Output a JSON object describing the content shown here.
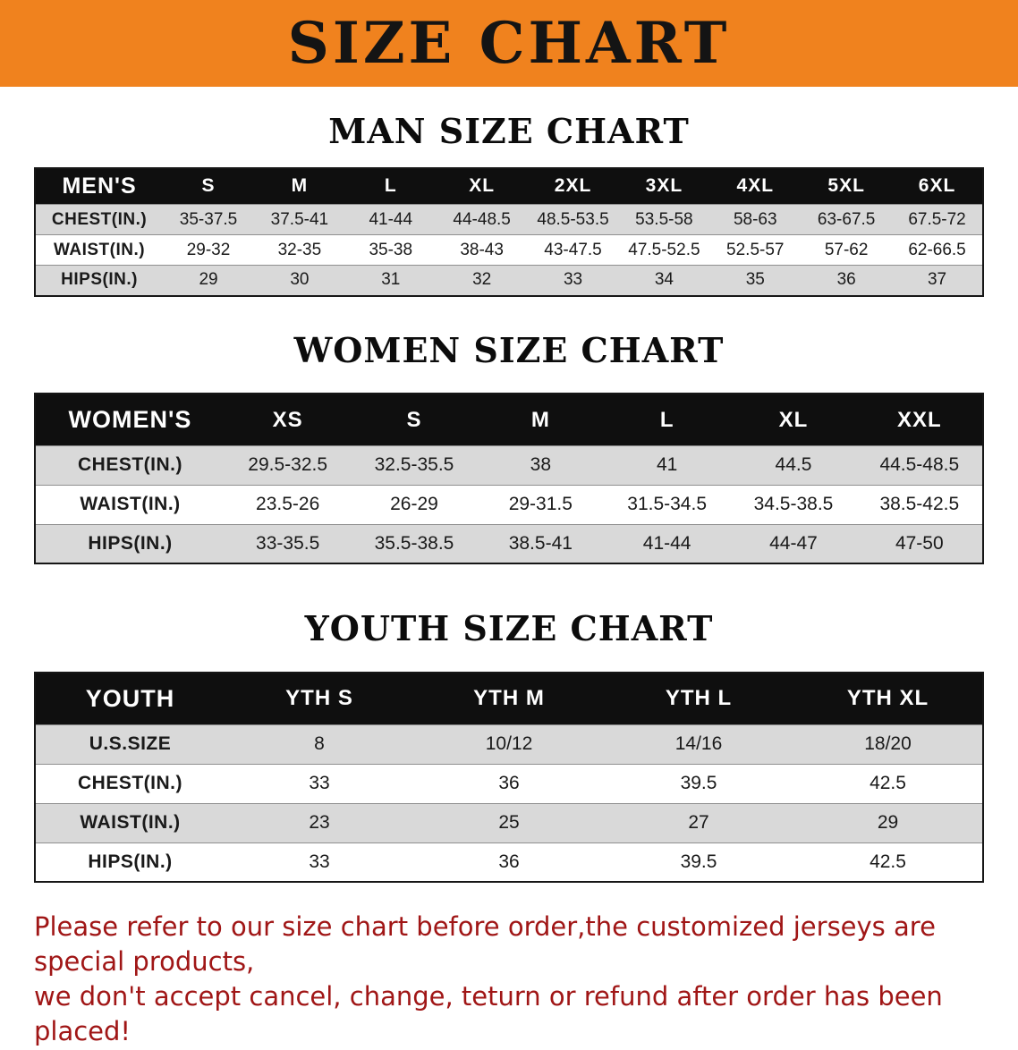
{
  "banner": {
    "title": "SIZE CHART"
  },
  "colors": {
    "banner_bg": "#F0821E",
    "header_bg": "#0F0F0F",
    "stripe": "#D9D9D9",
    "note": "#A01616"
  },
  "sections": [
    {
      "id": "mens",
      "title": "MAN SIZE CHART",
      "columns": [
        "MEN'S",
        "S",
        "M",
        "L",
        "XL",
        "2XL",
        "3XL",
        "4XL",
        "5XL",
        "6XL"
      ],
      "rows": [
        [
          "CHEST(IN.)",
          "35-37.5",
          "37.5-41",
          "41-44",
          "44-48.5",
          "48.5-53.5",
          "53.5-58",
          "58-63",
          "63-67.5",
          "67.5-72"
        ],
        [
          "WAIST(IN.)",
          "29-32",
          "32-35",
          "35-38",
          "38-43",
          "43-47.5",
          "47.5-52.5",
          "52.5-57",
          "57-62",
          "62-66.5"
        ],
        [
          "HIPS(IN.)",
          "29",
          "30",
          "31",
          "32",
          "33",
          "34",
          "35",
          "36",
          "37"
        ]
      ]
    },
    {
      "id": "womens",
      "title": "WOMEN SIZE CHART",
      "columns": [
        "WOMEN'S",
        "XS",
        "S",
        "M",
        "L",
        "XL",
        "XXL"
      ],
      "rows": [
        [
          "CHEST(IN.)",
          "29.5-32.5",
          "32.5-35.5",
          "38",
          "41",
          "44.5",
          "44.5-48.5"
        ],
        [
          "WAIST(IN.)",
          "23.5-26",
          "26-29",
          "29-31.5",
          "31.5-34.5",
          "34.5-38.5",
          "38.5-42.5"
        ],
        [
          "HIPS(IN.)",
          "33-35.5",
          "35.5-38.5",
          "38.5-41",
          "41-44",
          "44-47",
          "47-50"
        ]
      ]
    },
    {
      "id": "youth",
      "title": "YOUTH SIZE CHART",
      "columns": [
        "YOUTH",
        "YTH S",
        "YTH M",
        "YTH L",
        "YTH XL"
      ],
      "rows": [
        [
          "U.S.SIZE",
          "8",
          "10/12",
          "14/16",
          "18/20"
        ],
        [
          "CHEST(IN.)",
          "33",
          "36",
          "39.5",
          "42.5"
        ],
        [
          "WAIST(IN.)",
          "23",
          "25",
          "27",
          "29"
        ],
        [
          "HIPS(IN.)",
          "33",
          "36",
          "39.5",
          "42.5"
        ]
      ]
    }
  ],
  "note": {
    "lines": [
      "Please refer to our size chart before order,the customized jerseys are special products,",
      "we don't accept cancel, change, teturn or refund after order has been placed!"
    ]
  }
}
